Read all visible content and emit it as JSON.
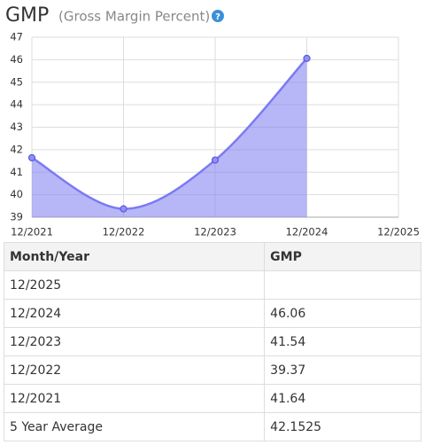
{
  "chart_data": {
    "type": "area",
    "title": "GMP",
    "subtitle": "(Gross Margin Percent)",
    "categories": [
      "12/2021",
      "12/2022",
      "12/2023",
      "12/2024",
      "12/2025"
    ],
    "values": [
      41.64,
      39.37,
      41.54,
      46.06,
      null
    ],
    "color": "#7b7bf2",
    "ylim": [
      39,
      47
    ],
    "yticks": [
      39,
      40,
      41,
      42,
      43,
      44,
      45,
      46,
      47
    ],
    "grid": true
  },
  "table": {
    "header": [
      "Month/Year",
      "GMP"
    ],
    "rows": [
      [
        "12/2025",
        null
      ],
      [
        "12/2024",
        "46.06"
      ],
      [
        "12/2023",
        "41.54"
      ],
      [
        "12/2022",
        "39.37"
      ],
      [
        "12/2021",
        "41.64"
      ],
      [
        "5 Year Average",
        "42.1525"
      ]
    ]
  }
}
